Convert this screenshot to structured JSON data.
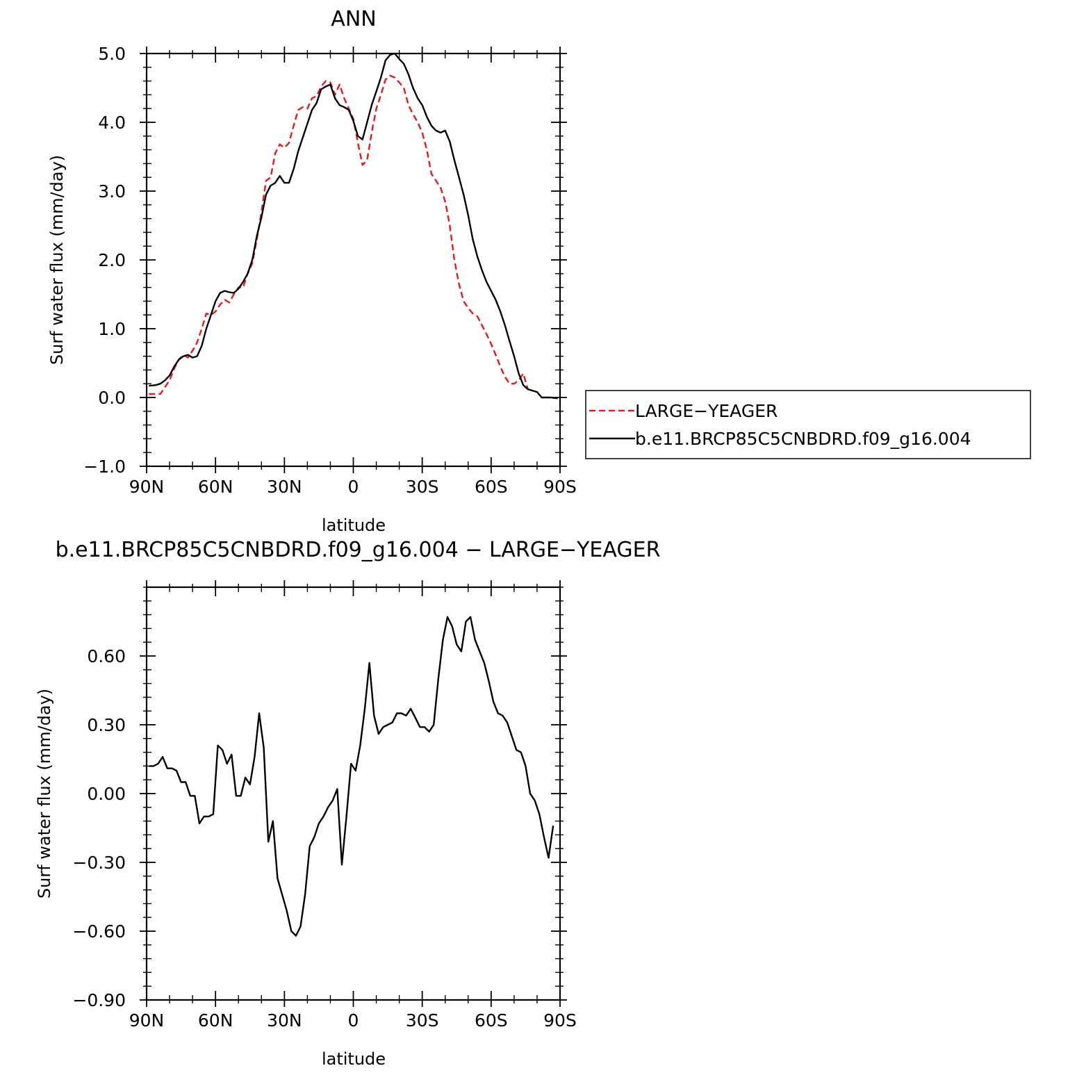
{
  "chart_data": [
    {
      "type": "line",
      "title": "ANN",
      "xlabel": "latitude",
      "ylabel": "Surf  water flux (mm/day)",
      "xlim": [
        90,
        -90
      ],
      "ylim": [
        -1.0,
        5.0
      ],
      "x_ticks": [
        90,
        60,
        30,
        0,
        -30,
        -60,
        -90
      ],
      "x_tick_labels": [
        "90N",
        "60N",
        "30N",
        "0",
        "30S",
        "60S",
        "90S"
      ],
      "y_ticks": [
        -1.0,
        0.0,
        1.0,
        2.0,
        3.0,
        4.0,
        5.0
      ],
      "y_tick_labels": [
        "−1.0",
        "0.0",
        "1.0",
        "2.0",
        "3.0",
        "4.0",
        "5.0"
      ],
      "legend_position": "right",
      "series": [
        {
          "name": "LARGE−YEAGER",
          "color": "#e41a1c",
          "dash": "dashed",
          "points": [
            [
              89,
              0.05
            ],
            [
              86,
              0.05
            ],
            [
              84,
              0.05
            ],
            [
              82,
              0.15
            ],
            [
              80,
              0.25
            ],
            [
              78,
              0.42
            ],
            [
              76,
              0.55
            ],
            [
              74,
              0.62
            ],
            [
              72,
              0.58
            ],
            [
              70,
              0.68
            ],
            [
              68,
              0.8
            ],
            [
              66,
              1.0
            ],
            [
              64,
              1.22
            ],
            [
              62,
              1.2
            ],
            [
              60,
              1.25
            ],
            [
              58,
              1.35
            ],
            [
              56,
              1.42
            ],
            [
              54,
              1.38
            ],
            [
              52,
              1.5
            ],
            [
              50,
              1.6
            ],
            [
              48,
              1.6
            ],
            [
              46,
              1.8
            ],
            [
              44,
              1.95
            ],
            [
              42,
              2.3
            ],
            [
              40,
              2.7
            ],
            [
              38,
              3.15
            ],
            [
              36,
              3.2
            ],
            [
              34,
              3.55
            ],
            [
              32,
              3.68
            ],
            [
              30,
              3.63
            ],
            [
              28,
              3.7
            ],
            [
              26,
              3.95
            ],
            [
              24,
              4.18
            ],
            [
              22,
              4.22
            ],
            [
              20,
              4.2
            ],
            [
              18,
              4.35
            ],
            [
              16,
              4.38
            ],
            [
              14,
              4.52
            ],
            [
              12,
              4.6
            ],
            [
              10,
              4.58
            ],
            [
              8,
              4.4
            ],
            [
              6,
              4.55
            ],
            [
              4,
              4.35
            ],
            [
              2,
              4.2
            ],
            [
              0,
              4.05
            ],
            [
              -2,
              3.7
            ],
            [
              -4,
              3.38
            ],
            [
              -6,
              3.45
            ],
            [
              -8,
              3.85
            ],
            [
              -10,
              4.2
            ],
            [
              -12,
              4.4
            ],
            [
              -14,
              4.62
            ],
            [
              -16,
              4.68
            ],
            [
              -18,
              4.65
            ],
            [
              -20,
              4.58
            ],
            [
              -22,
              4.5
            ],
            [
              -24,
              4.25
            ],
            [
              -26,
              4.12
            ],
            [
              -28,
              4.0
            ],
            [
              -30,
              3.85
            ],
            [
              -32,
              3.6
            ],
            [
              -34,
              3.25
            ],
            [
              -36,
              3.15
            ],
            [
              -38,
              3.05
            ],
            [
              -40,
              2.85
            ],
            [
              -42,
              2.5
            ],
            [
              -44,
              2.0
            ],
            [
              -46,
              1.65
            ],
            [
              -48,
              1.4
            ],
            [
              -50,
              1.3
            ],
            [
              -52,
              1.22
            ],
            [
              -54,
              1.18
            ],
            [
              -56,
              1.05
            ],
            [
              -58,
              0.92
            ],
            [
              -60,
              0.78
            ],
            [
              -62,
              0.62
            ],
            [
              -64,
              0.45
            ],
            [
              -66,
              0.3
            ],
            [
              -68,
              0.2
            ],
            [
              -70,
              0.2
            ],
            [
              -72,
              0.25
            ],
            [
              -74,
              0.35
            ],
            [
              -76,
              0.12
            ]
          ]
        },
        {
          "name": "b.e11.BRCP85C5CNBDRD.f09_g16.004",
          "color": "#000000",
          "dash": "solid",
          "points": [
            [
              89,
              0.17
            ],
            [
              86,
              0.18
            ],
            [
              84,
              0.2
            ],
            [
              82,
              0.25
            ],
            [
              80,
              0.32
            ],
            [
              78,
              0.45
            ],
            [
              76,
              0.55
            ],
            [
              74,
              0.6
            ],
            [
              72,
              0.62
            ],
            [
              70,
              0.58
            ],
            [
              68,
              0.6
            ],
            [
              66,
              0.75
            ],
            [
              64,
              1.0
            ],
            [
              62,
              1.2
            ],
            [
              60,
              1.4
            ],
            [
              58,
              1.52
            ],
            [
              56,
              1.55
            ],
            [
              54,
              1.53
            ],
            [
              52,
              1.52
            ],
            [
              50,
              1.58
            ],
            [
              48,
              1.68
            ],
            [
              46,
              1.8
            ],
            [
              44,
              2.0
            ],
            [
              42,
              2.35
            ],
            [
              40,
              2.62
            ],
            [
              38,
              2.95
            ],
            [
              36,
              3.08
            ],
            [
              34,
              3.12
            ],
            [
              32,
              3.22
            ],
            [
              30,
              3.12
            ],
            [
              28,
              3.12
            ],
            [
              26,
              3.32
            ],
            [
              24,
              3.58
            ],
            [
              22,
              3.78
            ],
            [
              20,
              3.98
            ],
            [
              18,
              4.18
            ],
            [
              16,
              4.28
            ],
            [
              14,
              4.48
            ],
            [
              12,
              4.52
            ],
            [
              10,
              4.55
            ],
            [
              8,
              4.35
            ],
            [
              6,
              4.25
            ],
            [
              4,
              4.22
            ],
            [
              2,
              4.18
            ],
            [
              0,
              4.02
            ],
            [
              -2,
              3.8
            ],
            [
              -4,
              3.75
            ],
            [
              -6,
              4.0
            ],
            [
              -8,
              4.25
            ],
            [
              -10,
              4.45
            ],
            [
              -12,
              4.65
            ],
            [
              -14,
              4.9
            ],
            [
              -16,
              4.98
            ],
            [
              -18,
              5.0
            ],
            [
              -20,
              4.92
            ],
            [
              -22,
              4.85
            ],
            [
              -24,
              4.7
            ],
            [
              -26,
              4.5
            ],
            [
              -28,
              4.35
            ],
            [
              -30,
              4.25
            ],
            [
              -32,
              4.08
            ],
            [
              -34,
              3.95
            ],
            [
              -36,
              3.88
            ],
            [
              -38,
              3.85
            ],
            [
              -40,
              3.88
            ],
            [
              -42,
              3.72
            ],
            [
              -44,
              3.45
            ],
            [
              -46,
              3.2
            ],
            [
              -48,
              2.95
            ],
            [
              -50,
              2.65
            ],
            [
              -52,
              2.3
            ],
            [
              -54,
              2.05
            ],
            [
              -56,
              1.85
            ],
            [
              -58,
              1.68
            ],
            [
              -60,
              1.55
            ],
            [
              -62,
              1.42
            ],
            [
              -64,
              1.25
            ],
            [
              -66,
              1.05
            ],
            [
              -68,
              0.82
            ],
            [
              -70,
              0.6
            ],
            [
              -72,
              0.35
            ],
            [
              -74,
              0.18
            ],
            [
              -76,
              0.12
            ],
            [
              -78,
              0.1
            ],
            [
              -80,
              0.08
            ],
            [
              -82,
              0.0
            ],
            [
              -84,
              0.0
            ],
            [
              -86,
              0.0
            ],
            [
              -88,
              -0.01
            ],
            [
              -89,
              -0.01
            ]
          ]
        }
      ]
    },
    {
      "type": "line",
      "title": "b.e11.BRCP85C5CNBDRD.f09_g16.004 − LARGE−YEAGER",
      "xlabel": "latitude",
      "ylabel": "Surf  water flux (mm/day)",
      "xlim": [
        90,
        -90
      ],
      "ylim": [
        -0.9,
        0.9
      ],
      "x_ticks": [
        90,
        60,
        30,
        0,
        -30,
        -60,
        -90
      ],
      "x_tick_labels": [
        "90N",
        "60N",
        "30N",
        "0",
        "30S",
        "60S",
        "90S"
      ],
      "y_ticks": [
        -0.9,
        -0.6,
        -0.3,
        0.0,
        0.3,
        0.6
      ],
      "y_tick_labels": [
        "−0.90",
        "−0.60",
        "−0.30",
        "0.00",
        "0.30",
        "0.60"
      ],
      "series": [
        {
          "color": "#000000",
          "dash": "solid",
          "points": [
            [
              89,
              0.12
            ],
            [
              87,
              0.12
            ],
            [
              85,
              0.13
            ],
            [
              83,
              0.16
            ],
            [
              81,
              0.11
            ],
            [
              79,
              0.11
            ],
            [
              77,
              0.1
            ],
            [
              75,
              0.05
            ],
            [
              73,
              0.05
            ],
            [
              71,
              -0.01
            ],
            [
              69,
              -0.01
            ],
            [
              67,
              -0.13
            ],
            [
              65,
              -0.1
            ],
            [
              63,
              -0.1
            ],
            [
              61,
              -0.09
            ],
            [
              59,
              0.21
            ],
            [
              57,
              0.19
            ],
            [
              55,
              0.13
            ],
            [
              53,
              0.17
            ],
            [
              51,
              -0.01
            ],
            [
              49,
              -0.01
            ],
            [
              47,
              0.07
            ],
            [
              45,
              0.04
            ],
            [
              43,
              0.16
            ],
            [
              41,
              0.35
            ],
            [
              39,
              0.2
            ],
            [
              37,
              -0.21
            ],
            [
              35,
              -0.12
            ],
            [
              33,
              -0.37
            ],
            [
              31,
              -0.44
            ],
            [
              29,
              -0.51
            ],
            [
              27,
              -0.6
            ],
            [
              25,
              -0.62
            ],
            [
              23,
              -0.58
            ],
            [
              21,
              -0.44
            ],
            [
              19,
              -0.23
            ],
            [
              17,
              -0.19
            ],
            [
              15,
              -0.13
            ],
            [
              13,
              -0.1
            ],
            [
              11,
              -0.06
            ],
            [
              9,
              -0.03
            ],
            [
              7,
              0.02
            ],
            [
              5,
              -0.31
            ],
            [
              3,
              -0.1
            ],
            [
              1,
              0.13
            ],
            [
              -1,
              0.1
            ],
            [
              -3,
              0.21
            ],
            [
              -5,
              0.37
            ],
            [
              -7,
              0.57
            ],
            [
              -9,
              0.34
            ],
            [
              -11,
              0.26
            ],
            [
              -13,
              0.29
            ],
            [
              -15,
              0.3
            ],
            [
              -17,
              0.31
            ],
            [
              -19,
              0.35
            ],
            [
              -21,
              0.35
            ],
            [
              -23,
              0.34
            ],
            [
              -25,
              0.37
            ],
            [
              -27,
              0.33
            ],
            [
              -29,
              0.29
            ],
            [
              -31,
              0.29
            ],
            [
              -33,
              0.27
            ],
            [
              -35,
              0.3
            ],
            [
              -37,
              0.5
            ],
            [
              -39,
              0.67
            ],
            [
              -41,
              0.77
            ],
            [
              -43,
              0.73
            ],
            [
              -45,
              0.65
            ],
            [
              -47,
              0.62
            ],
            [
              -49,
              0.75
            ],
            [
              -51,
              0.77
            ],
            [
              -53,
              0.67
            ],
            [
              -55,
              0.62
            ],
            [
              -57,
              0.57
            ],
            [
              -59,
              0.49
            ],
            [
              -61,
              0.4
            ],
            [
              -63,
              0.35
            ],
            [
              -65,
              0.34
            ],
            [
              -67,
              0.31
            ],
            [
              -69,
              0.25
            ],
            [
              -71,
              0.19
            ],
            [
              -73,
              0.18
            ],
            [
              -75,
              0.12
            ],
            [
              -77,
              0.0
            ],
            [
              -79,
              -0.03
            ],
            [
              -81,
              -0.09
            ],
            [
              -83,
              -0.19
            ],
            [
              -85,
              -0.28
            ],
            [
              -87,
              -0.14
            ]
          ]
        }
      ]
    }
  ]
}
